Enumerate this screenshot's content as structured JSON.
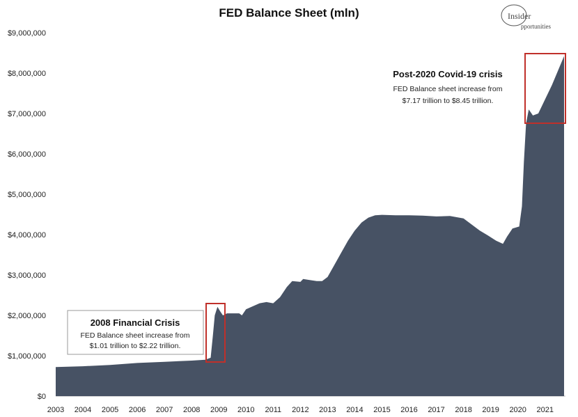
{
  "chart_data": {
    "type": "area",
    "title": "FED Balance Sheet (mln)",
    "xlabel": "",
    "ylabel": "",
    "ylim": [
      0,
      9000000
    ],
    "xlim": [
      2003.0,
      2021.75
    ],
    "grid": false,
    "legend": "none",
    "colors": {
      "area": "#475264",
      "highlight": "#c0302a"
    },
    "y_ticks": [
      0,
      1000000,
      2000000,
      3000000,
      4000000,
      5000000,
      6000000,
      7000000,
      8000000,
      9000000
    ],
    "y_tick_labels": [
      "$0",
      "$1,000,000",
      "$2,000,000",
      "$3,000,000",
      "$4,000,000",
      "$5,000,000",
      "$6,000,000",
      "$7,000,000",
      "$8,000,000",
      "$9,000,000"
    ],
    "x_ticks": [
      2003,
      2004,
      2005,
      2006,
      2007,
      2008,
      2009,
      2010,
      2011,
      2012,
      2013,
      2014,
      2015,
      2016,
      2017,
      2018,
      2019,
      2020,
      2021
    ],
    "x_tick_labels": [
      "2003",
      "2004",
      "2005",
      "2006",
      "2007",
      "2008",
      "2009",
      "2010",
      "2011",
      "2012",
      "2013",
      "2014",
      "2015",
      "2016",
      "2017",
      "2018",
      "2019",
      "2020",
      "2021"
    ],
    "series": [
      {
        "values": [
          [
            2003.0,
            720000
          ],
          [
            2004.0,
            740000
          ],
          [
            2005.0,
            770000
          ],
          [
            2006.0,
            820000
          ],
          [
            2007.0,
            850000
          ],
          [
            2008.0,
            880000
          ],
          [
            2008.5,
            900000
          ],
          [
            2008.7,
            950000
          ],
          [
            2008.78,
            1500000
          ],
          [
            2008.85,
            2000000
          ],
          [
            2008.95,
            2210000
          ],
          [
            2009.05,
            2100000
          ],
          [
            2009.15,
            2000000
          ],
          [
            2009.3,
            2050000
          ],
          [
            2009.5,
            2050000
          ],
          [
            2009.75,
            2050000
          ],
          [
            2009.85,
            2000000
          ],
          [
            2010.0,
            2150000
          ],
          [
            2010.5,
            2300000
          ],
          [
            2010.75,
            2330000
          ],
          [
            2011.0,
            2300000
          ],
          [
            2011.25,
            2450000
          ],
          [
            2011.5,
            2700000
          ],
          [
            2011.7,
            2850000
          ],
          [
            2012.0,
            2830000
          ],
          [
            2012.1,
            2900000
          ],
          [
            2012.3,
            2880000
          ],
          [
            2012.6,
            2850000
          ],
          [
            2012.8,
            2850000
          ],
          [
            2013.0,
            2950000
          ],
          [
            2013.25,
            3250000
          ],
          [
            2013.5,
            3550000
          ],
          [
            2013.75,
            3850000
          ],
          [
            2014.0,
            4100000
          ],
          [
            2014.25,
            4300000
          ],
          [
            2014.5,
            4420000
          ],
          [
            2014.75,
            4480000
          ],
          [
            2015.0,
            4490000
          ],
          [
            2015.5,
            4480000
          ],
          [
            2016.0,
            4480000
          ],
          [
            2016.5,
            4470000
          ],
          [
            2017.0,
            4450000
          ],
          [
            2017.5,
            4460000
          ],
          [
            2018.0,
            4400000
          ],
          [
            2018.3,
            4250000
          ],
          [
            2018.6,
            4100000
          ],
          [
            2018.9,
            3980000
          ],
          [
            2019.2,
            3850000
          ],
          [
            2019.45,
            3770000
          ],
          [
            2019.6,
            3950000
          ],
          [
            2019.8,
            4150000
          ],
          [
            2020.05,
            4200000
          ],
          [
            2020.15,
            4700000
          ],
          [
            2020.22,
            5800000
          ],
          [
            2020.3,
            6750000
          ],
          [
            2020.4,
            7100000
          ],
          [
            2020.55,
            6950000
          ],
          [
            2020.75,
            7000000
          ],
          [
            2021.0,
            7350000
          ],
          [
            2021.25,
            7700000
          ],
          [
            2021.5,
            8100000
          ],
          [
            2021.7,
            8420000
          ]
        ]
      }
    ],
    "annotations": [
      {
        "title": "2008 Financial Crisis",
        "lines": [
          "FED Balance sheet increase from",
          "$1.01 trillion to $2.22 trillion."
        ]
      },
      {
        "title": "Post-2020 Covid-19 crisis",
        "lines": [
          "FED Balance sheet increase from",
          "$7.17 trillion to $8.45 trillion."
        ]
      }
    ]
  },
  "logo": {
    "line1": "Insider",
    "line2": "Opportunities"
  }
}
